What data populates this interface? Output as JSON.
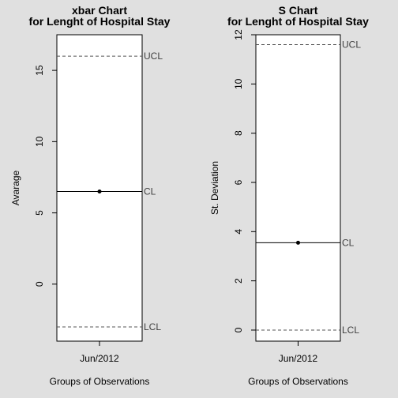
{
  "chart_data": [
    {
      "type": "line",
      "title_lines": [
        "xbar Chart",
        "for Lenght of Hospital Stay"
      ],
      "xlabel": "Groups of Observations",
      "ylabel": "Avarage",
      "categories": [
        "Jun/2012"
      ],
      "series": [
        {
          "values": [
            6.5
          ]
        }
      ],
      "ylim": [
        -4,
        17.5
      ],
      "yticks": [
        0,
        5,
        10,
        15
      ],
      "limits": [
        {
          "label": "UCL",
          "value": 16.0,
          "style": "dashed"
        },
        {
          "label": "CL",
          "value": 6.5,
          "style": "solid"
        },
        {
          "label": "LCL",
          "value": -3.0,
          "style": "dashed"
        }
      ],
      "grid": false
    },
    {
      "type": "line",
      "title_lines": [
        "S Chart",
        "for Lenght of Hospital Stay"
      ],
      "xlabel": "Groups of Observations",
      "ylabel": "St. Deviation",
      "categories": [
        "Jun/2012"
      ],
      "series": [
        {
          "values": [
            3.55
          ]
        }
      ],
      "ylim": [
        -0.45,
        12
      ],
      "yticks": [
        0,
        2,
        4,
        6,
        8,
        10,
        12
      ],
      "limits": [
        {
          "label": "UCL",
          "value": 11.6,
          "style": "dashed"
        },
        {
          "label": "CL",
          "value": 3.55,
          "style": "solid"
        },
        {
          "label": "LCL",
          "value": 0,
          "style": "dashed"
        }
      ],
      "grid": false
    }
  ]
}
